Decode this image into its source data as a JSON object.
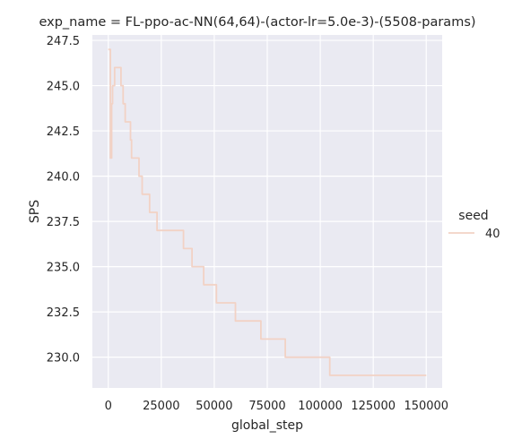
{
  "chart_data": {
    "type": "line",
    "title": "exp_name = FL-ppo-ac-NN(64,64)-(actor-lr=5.0e-3)-(5508-params)",
    "xlabel": "global_step",
    "ylabel": "SPS",
    "xlim": [
      -7500,
      157500
    ],
    "ylim": [
      228.3,
      247.8
    ],
    "xticks": [
      0,
      25000,
      50000,
      75000,
      100000,
      125000,
      150000
    ],
    "xtick_labels": [
      "0",
      "25000",
      "50000",
      "75000",
      "100000",
      "125000",
      "150000"
    ],
    "yticks": [
      230.0,
      232.5,
      235.0,
      237.5,
      240.0,
      242.5,
      245.0,
      247.5
    ],
    "ytick_labels": [
      "230.0",
      "232.5",
      "235.0",
      "237.5",
      "240.0",
      "242.5",
      "245.0",
      "247.5"
    ],
    "grid": true,
    "legend": {
      "title": "seed",
      "placement": "right"
    },
    "series": [
      {
        "name": "40",
        "color": "#f2d2c5",
        "points": [
          [
            0,
            247
          ],
          [
            1000,
            241
          ],
          [
            1600,
            244
          ],
          [
            2000,
            245
          ],
          [
            3000,
            246
          ],
          [
            6000,
            245
          ],
          [
            7000,
            244
          ],
          [
            8000,
            243
          ],
          [
            10500,
            242
          ],
          [
            11000,
            241
          ],
          [
            14500,
            240
          ],
          [
            16000,
            239
          ],
          [
            19500,
            238
          ],
          [
            23000,
            237
          ],
          [
            35500,
            236
          ],
          [
            39500,
            235
          ],
          [
            45000,
            234
          ],
          [
            51000,
            233
          ],
          [
            60000,
            232
          ],
          [
            72000,
            231
          ],
          [
            83500,
            230
          ],
          [
            104500,
            229
          ],
          [
            150000,
            229
          ]
        ]
      }
    ]
  }
}
